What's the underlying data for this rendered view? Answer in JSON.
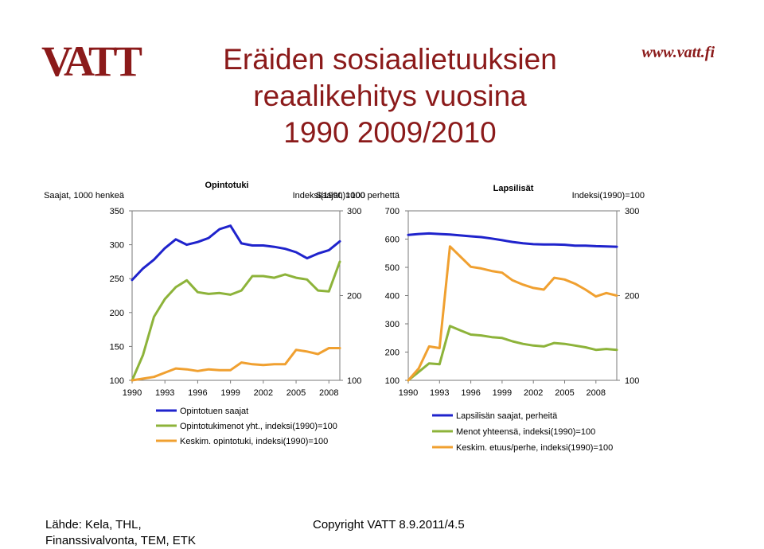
{
  "colors": {
    "brand": "#8b1a1a",
    "blue": "#1f23cc",
    "green": "#8db33a",
    "orange": "#f0a030"
  },
  "logo": {
    "text": "VATT",
    "url": "www.vatt.fi"
  },
  "title": {
    "line1": "Eräiden sosiaalietuuksien",
    "line2": "reaalikehitys vuosina",
    "line3": "1990 2009/2010"
  },
  "footer": {
    "source_line1": "Lähde: Kela, THL,",
    "source_line2": "Finanssivalvonta, TEM, ETK",
    "copyright": "Copyright VATT 8.9.2011/4.5"
  },
  "chart_data": [
    {
      "type": "line",
      "title": "Opintotuki",
      "left_axis_label": "Saajat, 1000 henkeä",
      "right_axis_label": "Indeksi(1990)=100",
      "x": [
        1990,
        1991,
        1992,
        1993,
        1994,
        1995,
        1996,
        1997,
        1998,
        1999,
        2000,
        2001,
        2002,
        2003,
        2004,
        2005,
        2006,
        2007,
        2008,
        2009
      ],
      "x_ticks": [
        "1990",
        "1993",
        "1996",
        "1999",
        "2002",
        "2005",
        "2008"
      ],
      "left_ylim": [
        100,
        350
      ],
      "left_ticks": [
        "350",
        "300",
        "250",
        "200",
        "150",
        "100"
      ],
      "right_ylim": [
        100,
        300
      ],
      "right_ticks": [
        "300",
        "200",
        "100"
      ],
      "series": [
        {
          "name": "Opintotuen saajat",
          "axis": "left",
          "color": "#1f23cc",
          "values": [
            248,
            265,
            278,
            295,
            308,
            300,
            304,
            310,
            323,
            328,
            302,
            299,
            299,
            297,
            294,
            289,
            280,
            287,
            292,
            305
          ]
        },
        {
          "name": "Opintotukimenot yht., indeksi(1990)=100",
          "axis": "right",
          "color": "#8db33a",
          "values": [
            100,
            130,
            175,
            196,
            210,
            218,
            204,
            202,
            203,
            201,
            206,
            223,
            223,
            221,
            225,
            221,
            219,
            206,
            205,
            240
          ]
        },
        {
          "name": "Keskim. opintotuki, indeksi(1990)=100",
          "axis": "right",
          "color": "#f0a030",
          "values": [
            100,
            102,
            104,
            109,
            114,
            113,
            111,
            113,
            112,
            112,
            121,
            119,
            118,
            119,
            119,
            136,
            134,
            131,
            138,
            138
          ]
        }
      ]
    },
    {
      "type": "line",
      "title": "Lapsilisät",
      "left_axis_label": "Saajat, 1000 perhettä",
      "right_axis_label": "Indeksi(1990)=100",
      "x": [
        1990,
        1991,
        1992,
        1993,
        1994,
        1995,
        1996,
        1997,
        1998,
        1999,
        2000,
        2001,
        2002,
        2003,
        2004,
        2005,
        2006,
        2007,
        2008,
        2009,
        2010
      ],
      "x_ticks": [
        "1990",
        "1993",
        "1996",
        "1999",
        "2002",
        "2005",
        "2008"
      ],
      "left_ylim": [
        100,
        700
      ],
      "left_ticks": [
        "700",
        "600",
        "500",
        "400",
        "300",
        "200",
        "100"
      ],
      "right_ylim": [
        100,
        300
      ],
      "right_ticks": [
        "300",
        "200",
        "100"
      ],
      "series": [
        {
          "name": "Lapsilisän saajat, perheitä",
          "axis": "left",
          "color": "#1f23cc",
          "values": [
            615,
            618,
            620,
            618,
            616,
            613,
            610,
            607,
            602,
            596,
            590,
            585,
            582,
            581,
            581,
            580,
            577,
            577,
            575,
            574,
            573
          ]
        },
        {
          "name": "Menot yhteensä, indeksi(1990)=100",
          "axis": "right",
          "color": "#8db33a",
          "values": [
            100,
            110,
            120,
            119,
            164,
            159,
            154,
            153,
            151,
            150,
            146,
            143,
            141,
            140,
            144,
            143,
            141,
            139,
            136,
            137,
            136
          ]
        },
        {
          "name": "Keskim. etuus/perhe, indeksi(1990)=100",
          "axis": "right",
          "color": "#f0a030",
          "values": [
            100,
            114,
            140,
            138,
            258,
            246,
            234,
            232,
            229,
            227,
            218,
            213,
            209,
            207,
            221,
            219,
            214,
            207,
            199,
            203,
            200
          ]
        }
      ]
    }
  ]
}
